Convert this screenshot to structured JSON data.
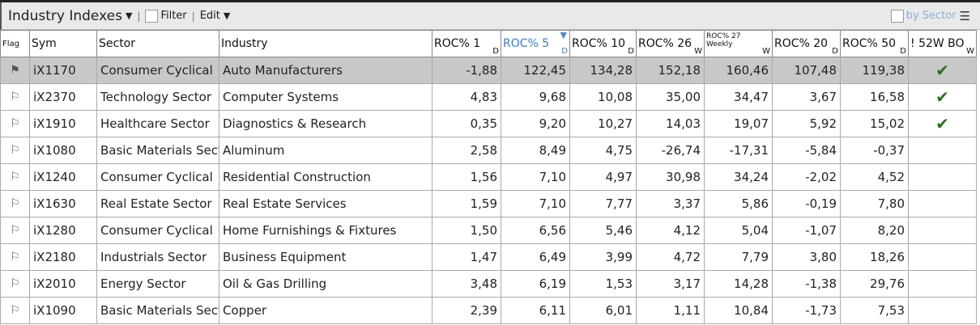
{
  "toolbar": {
    "title": "Industry Indexes",
    "filter_label": "Filter",
    "edit_label": "Edit",
    "by_sector_label": "by Sector"
  },
  "columns": [
    {
      "label": "Flag",
      "unit": ""
    },
    {
      "label": "Sym",
      "unit": ""
    },
    {
      "label": "Sector",
      "unit": ""
    },
    {
      "label": "Industry",
      "unit": ""
    },
    {
      "label": "ROC% 1",
      "unit": "D"
    },
    {
      "label": "ROC% 5",
      "unit": "D"
    },
    {
      "label": "ROC% 10",
      "unit": "D"
    },
    {
      "label": "ROC% 26",
      "unit": "W"
    },
    {
      "label": "ROC% 27 Weekly",
      "unit": "W"
    },
    {
      "label": "ROC% 20",
      "unit": "D"
    },
    {
      "label": "ROC% 50",
      "unit": "D"
    },
    {
      "label": "! 52W BO",
      "unit": "W"
    }
  ],
  "sorted_column": "ROC% 5",
  "rows": [
    {
      "sym": "iX1170",
      "sector": "Consumer Cyclical",
      "industry": "Auto Manufacturers",
      "v": [
        "-1,88",
        "122,45",
        "134,28",
        "152,18",
        "160,46",
        "107,48",
        "119,38"
      ],
      "bo": true,
      "selected": true
    },
    {
      "sym": "iX2370",
      "sector": "Technology Sector",
      "industry": "Computer Systems",
      "v": [
        "4,83",
        "9,68",
        "10,08",
        "35,00",
        "34,47",
        "3,67",
        "16,58"
      ],
      "bo": true
    },
    {
      "sym": "iX1910",
      "sector": "Healthcare Sector",
      "industry": "Diagnostics & Research",
      "v": [
        "0,35",
        "9,20",
        "10,27",
        "14,03",
        "19,07",
        "5,92",
        "15,02"
      ],
      "bo": true
    },
    {
      "sym": "iX1080",
      "sector": "Basic Materials Sect",
      "industry": "Aluminum",
      "v": [
        "2,58",
        "8,49",
        "4,75",
        "-26,74",
        "-17,31",
        "-5,84",
        "-0,37"
      ],
      "bo": false
    },
    {
      "sym": "iX1240",
      "sector": "Consumer Cyclical",
      "industry": "Residential Construction",
      "v": [
        "1,56",
        "7,10",
        "4,97",
        "30,98",
        "34,24",
        "-2,02",
        "4,52"
      ],
      "bo": false
    },
    {
      "sym": "iX1630",
      "sector": "Real Estate Sector",
      "industry": "Real Estate Services",
      "v": [
        "1,59",
        "7,10",
        "7,77",
        "3,37",
        "5,86",
        "-0,19",
        "7,80"
      ],
      "bo": false
    },
    {
      "sym": "iX1280",
      "sector": "Consumer Cyclical",
      "industry": "Home Furnishings & Fixtures",
      "v": [
        "1,50",
        "6,56",
        "5,46",
        "4,12",
        "5,04",
        "-1,07",
        "8,20"
      ],
      "bo": false
    },
    {
      "sym": "iX2180",
      "sector": "Industrials Sector",
      "industry": "Business Equipment",
      "v": [
        "1,47",
        "6,49",
        "3,99",
        "4,72",
        "7,79",
        "3,80",
        "18,26"
      ],
      "bo": false
    },
    {
      "sym": "iX2010",
      "sector": "Energy Sector",
      "industry": "Oil & Gas Drilling",
      "v": [
        "3,48",
        "6,19",
        "1,53",
        "3,17",
        "14,28",
        "-1,38",
        "29,76"
      ],
      "bo": false
    },
    {
      "sym": "iX1090",
      "sector": "Basic Materials Sect",
      "industry": "Copper",
      "v": [
        "2,39",
        "6,11",
        "6,01",
        "1,11",
        "10,84",
        "-1,73",
        "7,53"
      ],
      "bo": false
    }
  ],
  "colors": {
    "check": "#2c6e1f",
    "selected_row": "#c8c8c8",
    "sorted_header": "#3a7cc0"
  }
}
